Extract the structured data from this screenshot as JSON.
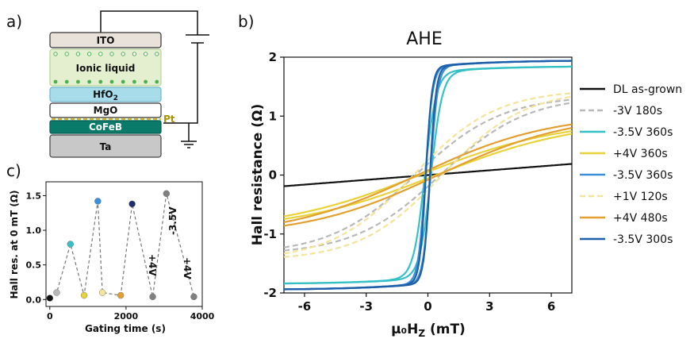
{
  "panels": {
    "a": "a)",
    "b": "b)",
    "c": "c)"
  },
  "stack": {
    "layers": [
      "ITO",
      "Ionic liquid",
      "HfO",
      "MgO",
      "CoFeB",
      "Ta"
    ],
    "hfo_sub": "2",
    "pt_label": "Pt"
  },
  "colors": {
    "dl_as_grown": "#111111",
    "neg3v_180s": "#b8b8b8",
    "neg3p5v_360s_a": "#35c0c6",
    "pos4v_360s": "#e8d23a",
    "neg3p5v_360s_b": "#3a8fd6",
    "pos1v_120s": "#f2e49a",
    "pos4v_480s": "#e3a030",
    "neg3p5v_300s": "#1f5faa"
  },
  "chart_data": [
    {
      "type": "line",
      "title": "AHE",
      "xlabel_main": "μ₀H",
      "xlabel_sub": "Z",
      "xlabel_unit": " (mT)",
      "ylabel": "Hall resistance (Ω)",
      "xlim": [
        -7,
        7
      ],
      "ylim": [
        -2,
        2
      ],
      "x_ticks": [
        -6,
        -3,
        0,
        3,
        6
      ],
      "y_ticks": [
        -2,
        -1,
        0,
        1,
        2
      ],
      "legend_position": "right",
      "series": [
        {
          "name": "DL as-grown",
          "style": "solid",
          "kind": "linear",
          "slope": 0.027
        },
        {
          "name": "-3V 180s",
          "style": "dashed",
          "kind": "tanh",
          "ms": 1.35,
          "w": 4.2,
          "hc": 0.6
        },
        {
          "name": "-3.5V 360s",
          "style": "solid",
          "kind": "sat",
          "ms": 1.85,
          "w": 0.55,
          "hc": 0.15
        },
        {
          "name": "+4V 360s",
          "style": "solid",
          "kind": "tanh",
          "ms": 0.95,
          "w": 7.0,
          "hc": 0.4
        },
        {
          "name": "-3.5V 360s",
          "style": "solid",
          "kind": "sat",
          "ms": 1.95,
          "w": 0.35,
          "hc": 0.12
        },
        {
          "name": "+1V 120s",
          "style": "dashed",
          "kind": "tanh",
          "ms": 1.45,
          "w": 4.0,
          "hc": 0.7
        },
        {
          "name": "+4V 480s",
          "style": "solid",
          "kind": "tanh",
          "ms": 1.05,
          "w": 6.5,
          "hc": 0.5
        },
        {
          "name": "-3.5V 300s",
          "style": "solid",
          "kind": "sat",
          "ms": 1.95,
          "w": 0.3,
          "hc": 0.1
        }
      ]
    },
    {
      "type": "scatter",
      "xlabel": "Gating time (s)",
      "ylabel": "Hall res. at 0 mT (Ω)",
      "xlim": [
        -100,
        4000
      ],
      "ylim": [
        -0.1,
        1.7
      ],
      "x_ticks": [
        0,
        2000,
        4000
      ],
      "y_ticks": [
        0.0,
        0.5,
        1.0,
        1.5
      ],
      "points": [
        {
          "x": 0,
          "y": 0.02,
          "color": "#111111"
        },
        {
          "x": 180,
          "y": 0.1,
          "color": "#b8b8b8"
        },
        {
          "x": 540,
          "y": 0.8,
          "color": "#35c0c6"
        },
        {
          "x": 900,
          "y": 0.06,
          "color": "#e8d23a"
        },
        {
          "x": 1260,
          "y": 1.42,
          "color": "#3a8fd6"
        },
        {
          "x": 1380,
          "y": 0.1,
          "color": "#f2e49a"
        },
        {
          "x": 1860,
          "y": 0.06,
          "color": "#e3a030"
        },
        {
          "x": 2160,
          "y": 1.38,
          "color": "#1f2f6e"
        },
        {
          "x": 2700,
          "y": 0.04,
          "color": "#808080"
        },
        {
          "x": 3060,
          "y": 1.53,
          "color": "#808080"
        },
        {
          "x": 3780,
          "y": 0.04,
          "color": "#808080"
        }
      ],
      "annotations": [
        "+4V",
        "-3.5V",
        "+4V"
      ]
    }
  ]
}
